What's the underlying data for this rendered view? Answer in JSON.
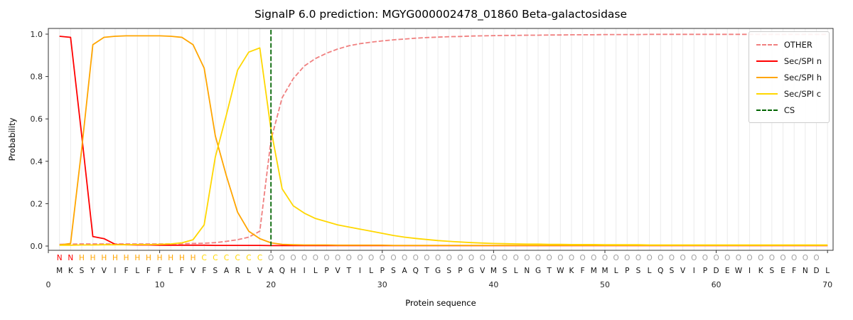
{
  "chart_data": {
    "type": "line",
    "title": "SignalP 6.0 prediction: MGYG000002478_01860 Beta-galactosidase",
    "xlabel": "Protein sequence",
    "ylabel": "Probability",
    "xlim": [
      0,
      70.5
    ],
    "ylim": [
      -0.02,
      1.03
    ],
    "x_ticks": [
      0,
      10,
      20,
      30,
      40,
      50,
      60,
      70
    ],
    "y_ticks": [
      "0.0",
      "0.2",
      "0.4",
      "0.6",
      "0.8",
      "1.0"
    ],
    "grid": "vertical-per-residue",
    "grid_color": "#ebebeb",
    "frame_color": "#333333",
    "tick_color": "#262626",
    "sequence_color": "#111111",
    "legend_position": "upper right",
    "sequence": "MKSYVIFLFFLFVFSARLVAQHILPVTILPSAQTGSPGVMSLNGTWKFMMLPSLQSVIPDEWIKSEFNDL",
    "region_labels": "NNHHHHHHHHHHHCCCCCCOOOOOOOOOOOOOOOOOOOOOOOOOOOOOOOOOOOOOOOOOOOOOOOOOO",
    "region_colors": {
      "N": "#ff0000",
      "H": "#ffa500",
      "C": "#ffd700",
      "O": "#a0a0a0"
    },
    "cs": {
      "label": "CS",
      "position": 20,
      "color": "#006400"
    },
    "series": [
      {
        "name": "OTHER",
        "color": "#f08080",
        "dash": true,
        "values": [
          0.008,
          0.009,
          0.01,
          0.01,
          0.01,
          0.01,
          0.01,
          0.01,
          0.01,
          0.01,
          0.01,
          0.011,
          0.012,
          0.013,
          0.016,
          0.022,
          0.03,
          0.042,
          0.07,
          0.5,
          0.7,
          0.79,
          0.85,
          0.885,
          0.91,
          0.93,
          0.945,
          0.955,
          0.962,
          0.968,
          0.973,
          0.977,
          0.981,
          0.984,
          0.986,
          0.988,
          0.989,
          0.991,
          0.992,
          0.993,
          0.994,
          0.994,
          0.995,
          0.995,
          0.996,
          0.996,
          0.997,
          0.997,
          0.997,
          0.998,
          0.998,
          0.998,
          0.998,
          0.999,
          0.999,
          0.999,
          0.999,
          0.999,
          0.999,
          0.999,
          0.999,
          0.999,
          0.999,
          0.999,
          0.999,
          0.999,
          0.999,
          0.999,
          0.999,
          0.999
        ]
      },
      {
        "name": "Sec/SPI n",
        "color": "#ff0000",
        "dash": false,
        "values": [
          0.99,
          0.985,
          0.52,
          0.045,
          0.035,
          0.008,
          0.006,
          0.005,
          0.005,
          0.004,
          0.004,
          0.004,
          0.004,
          0.004,
          0.003,
          0.003,
          0.003,
          0.003,
          0.003,
          0.002,
          0.002,
          0.002,
          0.002,
          0.002,
          0.002,
          0.002,
          0.002,
          0.002,
          0.002,
          0.002,
          0.002,
          0.002,
          0.002,
          0.002,
          0.002,
          0.002,
          0.002,
          0.002,
          0.002,
          0.002,
          0.002,
          0.002,
          0.002,
          0.002,
          0.002,
          0.002,
          0.002,
          0.002,
          0.002,
          0.002,
          0.002,
          0.002,
          0.002,
          0.002,
          0.002,
          0.002,
          0.002,
          0.002,
          0.002,
          0.002,
          0.002,
          0.002,
          0.002,
          0.002,
          0.002,
          0.002,
          0.002,
          0.002,
          0.002,
          0.002
        ]
      },
      {
        "name": "Sec/SPI h",
        "color": "#ffa500",
        "dash": false,
        "values": [
          0.005,
          0.012,
          0.46,
          0.95,
          0.985,
          0.99,
          0.992,
          0.992,
          0.992,
          0.992,
          0.99,
          0.985,
          0.95,
          0.84,
          0.52,
          0.33,
          0.16,
          0.07,
          0.035,
          0.015,
          0.008,
          0.006,
          0.005,
          0.005,
          0.005,
          0.004,
          0.004,
          0.004,
          0.004,
          0.004,
          0.003,
          0.003,
          0.003,
          0.003,
          0.003,
          0.003,
          0.003,
          0.003,
          0.003,
          0.003,
          0.003,
          0.003,
          0.003,
          0.003,
          0.003,
          0.003,
          0.003,
          0.003,
          0.003,
          0.003,
          0.003,
          0.003,
          0.003,
          0.003,
          0.003,
          0.003,
          0.003,
          0.003,
          0.003,
          0.003,
          0.003,
          0.003,
          0.003,
          0.003,
          0.003,
          0.003,
          0.003,
          0.003,
          0.003,
          0.003
        ]
      },
      {
        "name": "Sec/SPI c",
        "color": "#ffd700",
        "dash": false,
        "values": [
          0.004,
          0.004,
          0.005,
          0.005,
          0.006,
          0.006,
          0.006,
          0.007,
          0.007,
          0.008,
          0.01,
          0.015,
          0.03,
          0.1,
          0.42,
          0.62,
          0.83,
          0.915,
          0.935,
          0.55,
          0.27,
          0.19,
          0.155,
          0.13,
          0.115,
          0.1,
          0.09,
          0.08,
          0.07,
          0.06,
          0.05,
          0.042,
          0.036,
          0.031,
          0.026,
          0.022,
          0.019,
          0.016,
          0.014,
          0.012,
          0.011,
          0.01,
          0.009,
          0.009,
          0.008,
          0.008,
          0.007,
          0.007,
          0.007,
          0.006,
          0.006,
          0.006,
          0.006,
          0.005,
          0.005,
          0.005,
          0.005,
          0.005,
          0.005,
          0.005,
          0.005,
          0.005,
          0.005,
          0.005,
          0.005,
          0.005,
          0.005,
          0.005,
          0.005,
          0.005
        ]
      }
    ]
  }
}
